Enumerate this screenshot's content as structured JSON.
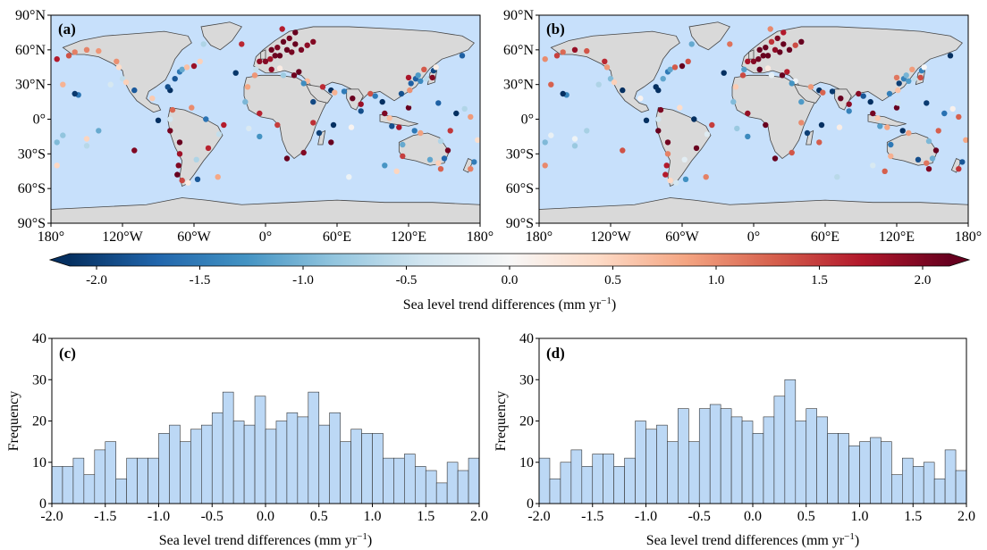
{
  "colors": {
    "ocean": "#c7e0fb",
    "land": "#d9d9d9",
    "coast": "#444444",
    "hist_bar": "#bcd8f5",
    "hist_edge": "#333333",
    "colormap_stops": [
      "#053061",
      "#2166ac",
      "#4393c3",
      "#92c5de",
      "#d1e5f0",
      "#f7f7f7",
      "#fddbc7",
      "#f4a582",
      "#d6604d",
      "#b2182b",
      "#67001f"
    ]
  },
  "colorbar": {
    "label_main": "Sea level trend differences (mm yr",
    "label_sup": "−1",
    "label_end": ")",
    "range": [
      -2.0,
      2.0
    ],
    "ticks": [
      "-2.0",
      "-1.5",
      "-1.0",
      "-0.5",
      "0.0",
      "0.5",
      "1.0",
      "1.5",
      "2.0"
    ]
  },
  "map_axes": {
    "lat_ticks": [
      "90°N",
      "60°N",
      "30°N",
      "0°",
      "30°S",
      "60°S",
      "90°S"
    ],
    "lon_ticks": [
      "180°",
      "120°W",
      "60°W",
      "0°",
      "60°E",
      "120°E",
      "180°"
    ]
  },
  "chart_data": [
    {
      "type": "scatter",
      "panel": "(a)",
      "description_type": "map of tide-gauge stations colored by trend difference",
      "lon_range": [
        -180,
        180
      ],
      "lat_range": [
        -90,
        90
      ],
      "color_range": [
        -2.0,
        2.0
      ]
    },
    {
      "type": "scatter",
      "panel": "(b)",
      "lon_range": [
        -180,
        180
      ],
      "lat_range": [
        -90,
        90
      ],
      "color_range": [
        -2.0,
        2.0
      ]
    },
    {
      "type": "bar",
      "panel": "(c)",
      "bin_start": -2.0,
      "bin_width": 0.1,
      "values": [
        9,
        9,
        11,
        7,
        13,
        15,
        6,
        11,
        11,
        11,
        17,
        19,
        15,
        18,
        19,
        22,
        27,
        20,
        19,
        26,
        18,
        20,
        22,
        21,
        27,
        19,
        22,
        15,
        18,
        17,
        17,
        11,
        11,
        12,
        9,
        8,
        5,
        10,
        8,
        11,
        10
      ],
      "xlim": [
        -2.0,
        2.0
      ],
      "ylim": [
        0,
        40
      ],
      "xticks": [
        "-2.0",
        "-1.5",
        "-1.0",
        "-0.5",
        "0.0",
        "0.5",
        "1.0",
        "1.5",
        "2.0"
      ],
      "yticks": [
        "0",
        "10",
        "20",
        "30",
        "40"
      ],
      "xlabel_main": "Sea level trend differences (mm yr",
      "xlabel_sup": "−1",
      "xlabel_end": ")",
      "ylabel": "Frequency"
    },
    {
      "type": "bar",
      "panel": "(d)",
      "bin_start": -2.0,
      "bin_width": 0.1,
      "values": [
        11,
        6,
        10,
        13,
        9,
        12,
        12,
        9,
        11,
        20,
        18,
        19,
        15,
        23,
        15,
        23,
        24,
        23,
        21,
        20,
        17,
        21,
        26,
        30,
        20,
        23,
        21,
        17,
        17,
        14,
        15,
        16,
        15,
        7,
        11,
        9,
        10,
        6,
        13,
        8,
        7
      ],
      "xlim": [
        -2.0,
        2.0
      ],
      "ylim": [
        0,
        40
      ],
      "xticks": [
        "-2.0",
        "-1.5",
        "-1.0",
        "-0.5",
        "0.0",
        "0.5",
        "1.0",
        "1.5",
        "2.0"
      ],
      "yticks": [
        "0",
        "10",
        "20",
        "30",
        "40"
      ],
      "xlabel_main": "Sea level trend differences (mm yr",
      "xlabel_sup": "−1",
      "xlabel_end": ")",
      "ylabel": "Frequency"
    }
  ]
}
